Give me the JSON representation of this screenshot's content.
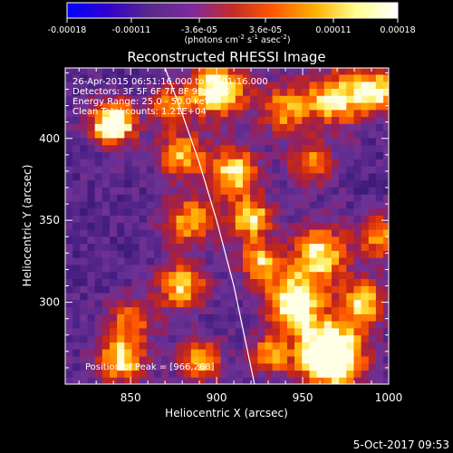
{
  "colorbar": {
    "stops": [
      "#0000ff",
      "#3300cc",
      "#5a2a88",
      "#7b2aa0",
      "#c42a2a",
      "#ff5a00",
      "#ffb000",
      "#ffff90",
      "#ffffff"
    ],
    "range": [
      -0.00018,
      0.00018
    ],
    "tick_labels": [
      "-0.00018",
      "-0.00011",
      "-3.6e-05",
      "3.6e-05",
      "0.00011",
      "0.00018"
    ],
    "units_label_html": "(photons cm<tspan dy='-4' font-size='7'>-2</tspan><tspan dy='4'> s</tspan><tspan dy='-4' font-size='7'>-1</tspan><tspan dy='4'> asec</tspan><tspan dy='-4' font-size='7'>-2</tspan><tspan dy='4'>)</tspan>"
  },
  "chart_data": {
    "type": "heatmap",
    "title": "Reconstructed RHESSI Image",
    "xlabel": "Heliocentric X (arcsec)",
    "ylabel": "Heliocentric Y (arcsec)",
    "xlim": [
      812,
      1000
    ],
    "ylim": [
      250,
      443
    ],
    "xticks": [
      850,
      900,
      950,
      1000
    ],
    "yticks": [
      300,
      350,
      400
    ],
    "annotations": [
      "26-Apr-2015 06:51:16.000 to 07:01:16.000",
      "Detectors: 3F 5F 6F 7F 8F 9F, Att 0",
      "Energy Range: 25.0 - 50.0 keV",
      "Clean    Total counts: 1.21E+04"
    ],
    "peak_label": "Position of Peak = [966,268]",
    "peak_position": [
      966,
      268
    ],
    "limb_curve": [
      [
        870,
        443
      ],
      [
        880,
        415
      ],
      [
        890,
        385
      ],
      [
        900,
        350
      ],
      [
        910,
        310
      ],
      [
        918,
        270
      ],
      [
        922,
        250
      ]
    ],
    "sources": [
      {
        "x": 840,
        "y": 410,
        "amp": 1.0,
        "sigma": 9
      },
      {
        "x": 873,
        "y": 420,
        "amp": 0.55,
        "sigma": 8
      },
      {
        "x": 900,
        "y": 430,
        "amp": 0.8,
        "sigma": 12
      },
      {
        "x": 940,
        "y": 418,
        "amp": 0.55,
        "sigma": 11
      },
      {
        "x": 970,
        "y": 425,
        "amp": 0.7,
        "sigma": 12
      },
      {
        "x": 995,
        "y": 430,
        "amp": 0.65,
        "sigma": 10
      },
      {
        "x": 880,
        "y": 390,
        "amp": 0.6,
        "sigma": 10
      },
      {
        "x": 910,
        "y": 380,
        "amp": 0.75,
        "sigma": 10
      },
      {
        "x": 955,
        "y": 385,
        "amp": 0.55,
        "sigma": 9
      },
      {
        "x": 885,
        "y": 350,
        "amp": 0.6,
        "sigma": 11
      },
      {
        "x": 920,
        "y": 352,
        "amp": 0.7,
        "sigma": 9
      },
      {
        "x": 960,
        "y": 330,
        "amp": 0.7,
        "sigma": 12
      },
      {
        "x": 995,
        "y": 340,
        "amp": 0.55,
        "sigma": 9
      },
      {
        "x": 880,
        "y": 310,
        "amp": 0.65,
        "sigma": 10
      },
      {
        "x": 925,
        "y": 325,
        "amp": 0.6,
        "sigma": 9
      },
      {
        "x": 945,
        "y": 300,
        "amp": 0.85,
        "sigma": 12
      },
      {
        "x": 850,
        "y": 290,
        "amp": 0.45,
        "sigma": 10
      },
      {
        "x": 845,
        "y": 265,
        "amp": 0.7,
        "sigma": 10
      },
      {
        "x": 890,
        "y": 265,
        "amp": 0.6,
        "sigma": 9
      },
      {
        "x": 930,
        "y": 268,
        "amp": 0.55,
        "sigma": 8
      },
      {
        "x": 966,
        "y": 268,
        "amp": 1.25,
        "sigma": 13
      },
      {
        "x": 985,
        "y": 300,
        "amp": 0.65,
        "sigma": 10
      }
    ]
  },
  "footer": {
    "timestamp": "5-Oct-2017 09:53"
  }
}
